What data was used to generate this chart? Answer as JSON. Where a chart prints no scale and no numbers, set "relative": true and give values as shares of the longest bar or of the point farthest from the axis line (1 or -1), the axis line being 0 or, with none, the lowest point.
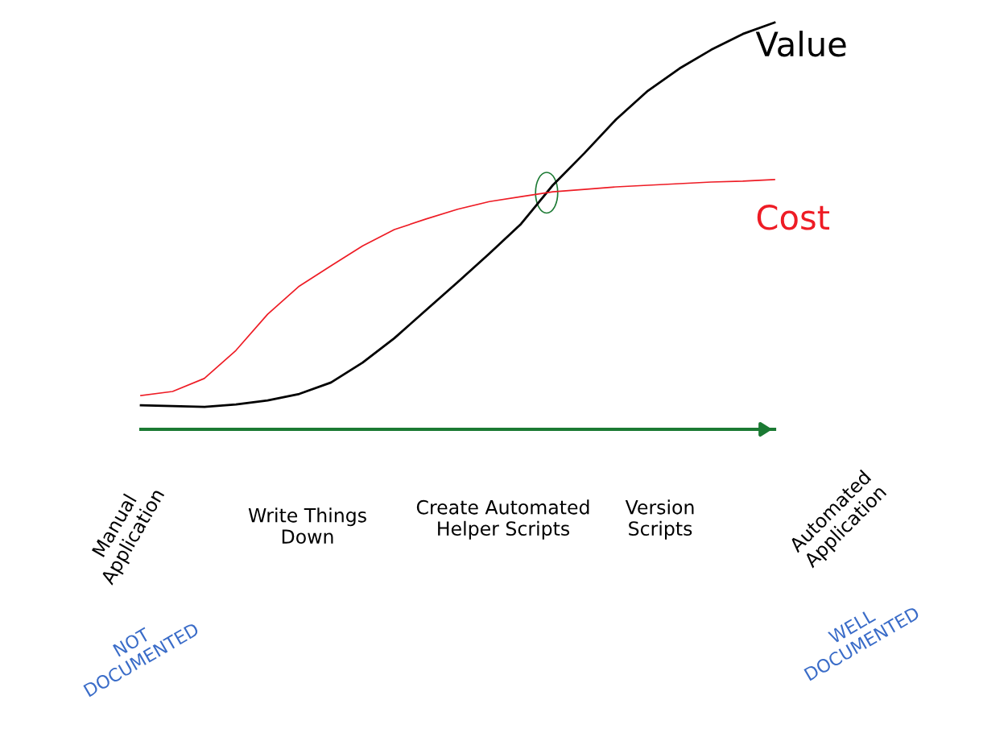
{
  "chart_data": {
    "type": "line",
    "relative": true,
    "categories": [
      null,
      null,
      null,
      null,
      null,
      null,
      null,
      null,
      null,
      null,
      null,
      null,
      null,
      null,
      null,
      null,
      null,
      null,
      null,
      null,
      null
    ],
    "series": [
      {
        "name": "Value",
        "color": "#000000",
        "values": [
          0.059,
          0.057,
          0.055,
          0.061,
          0.071,
          0.087,
          0.115,
          0.164,
          0.224,
          0.293,
          0.362,
          0.432,
          0.505,
          0.6,
          0.679,
          0.762,
          0.832,
          0.887,
          0.933,
          0.972,
          1
        ]
      },
      {
        "name": "Cost",
        "color": "#ee1c25",
        "values": [
          0.083,
          0.093,
          0.125,
          0.194,
          0.283,
          0.352,
          0.402,
          0.451,
          0.491,
          0.517,
          0.541,
          0.56,
          0.572,
          0.584,
          0.59,
          0.596,
          0.6,
          0.604,
          0.608,
          0.61,
          0.614
        ]
      }
    ],
    "annotations": [
      "Manual\nApplication",
      "Write Things\nDown",
      "Create Automated\nHelper Scripts",
      "Version\nScripts",
      "Automated\nApplication",
      "NOT\nDOCUMENTED",
      "WELL\nDOCUMENTED"
    ],
    "legend": false
  }
}
